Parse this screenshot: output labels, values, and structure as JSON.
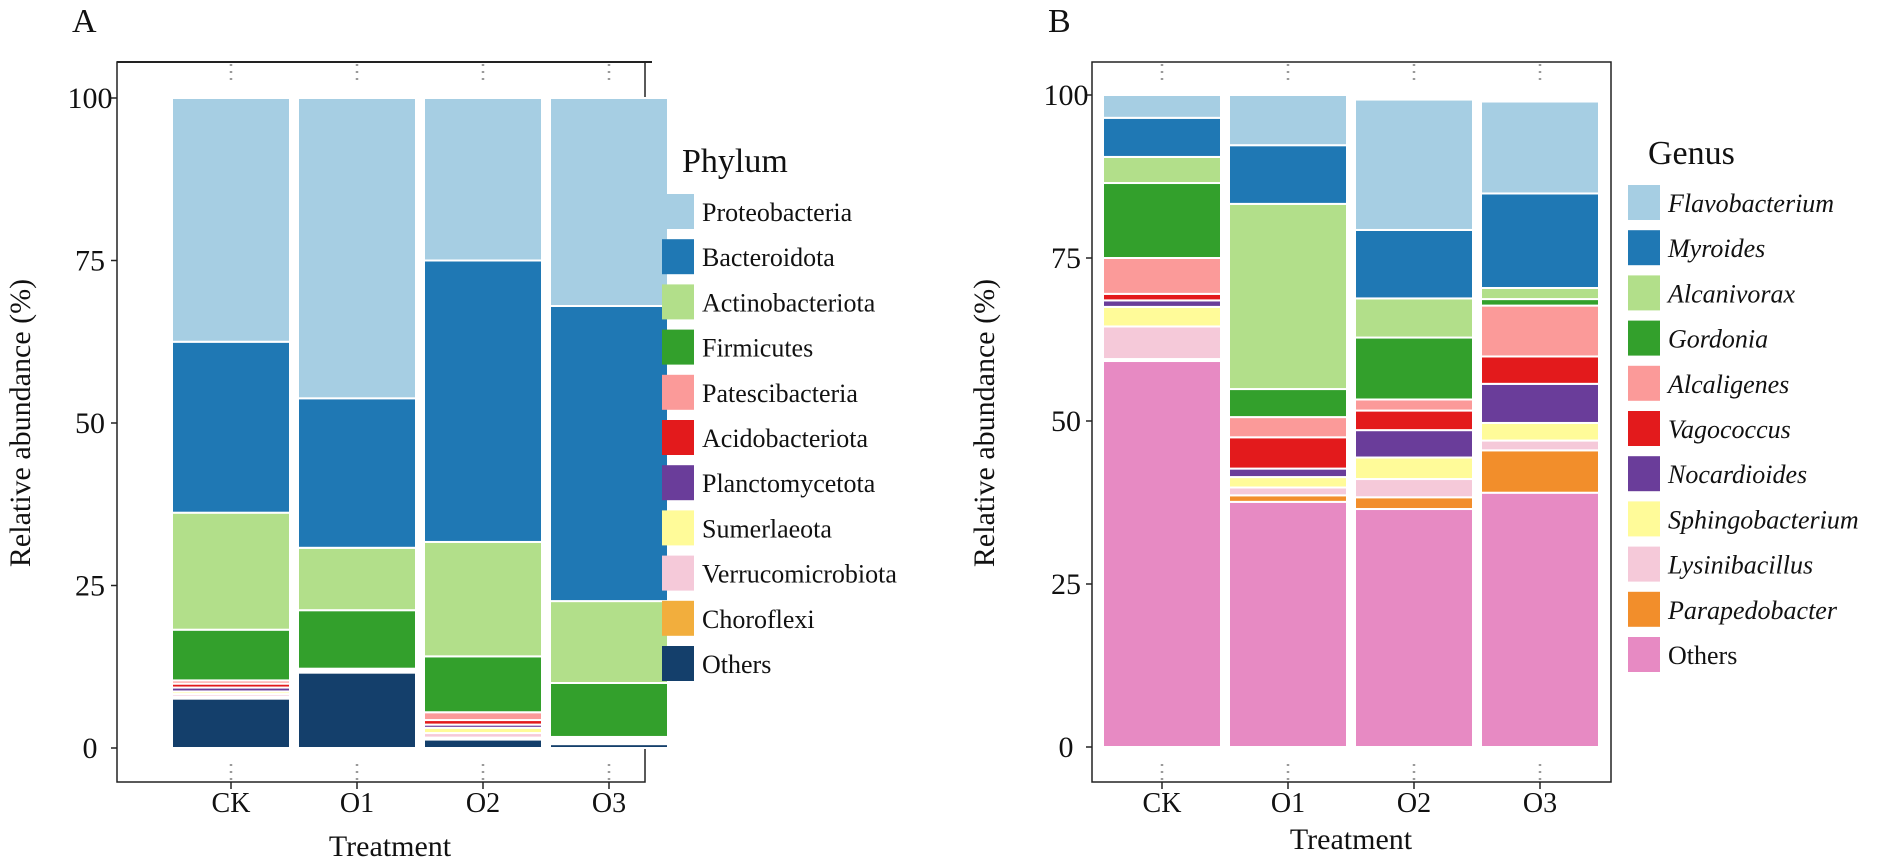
{
  "chart_data": [
    {
      "panel": "A",
      "type": "bar",
      "stacked": true,
      "xlabel": "Treatment",
      "ylabel": "Relative abundance (%)",
      "ylim": [
        0,
        100
      ],
      "yticks": [
        "0",
        "25",
        "50",
        "75",
        "100"
      ],
      "categories": [
        "CK",
        "O1",
        "O2",
        "O3"
      ],
      "legend_title": "Phylum",
      "legend_italic": false,
      "legend_position": "right",
      "series": [
        {
          "name": "Others",
          "color": "#143f6b",
          "values": [
            7.6,
            11.6,
            1.3,
            0.6
          ]
        },
        {
          "name": "Choroflexi",
          "color": "#f2ae3d",
          "values": [
            0.3,
            0.1,
            0.3,
            0.1
          ]
        },
        {
          "name": "Verrucomicrobiota",
          "color": "#f5c9d9",
          "values": [
            0.4,
            0.1,
            0.7,
            0.1
          ]
        },
        {
          "name": "Sumerlaeota",
          "color": "#fffb99",
          "values": [
            0.4,
            0.1,
            0.8,
            0.2
          ]
        },
        {
          "name": "Planctomycetota",
          "color": "#6a3d9a",
          "values": [
            0.6,
            0.1,
            0.5,
            0.2
          ]
        },
        {
          "name": "Acidobacteriota",
          "color": "#e31a1c",
          "values": [
            0.6,
            0.1,
            0.7,
            0.2
          ]
        },
        {
          "name": "Patescibacteria",
          "color": "#fb9a99",
          "values": [
            0.5,
            0.1,
            1.2,
            0.3
          ]
        },
        {
          "name": "Firmicutes",
          "color": "#33a02c",
          "values": [
            7.8,
            9.0,
            8.6,
            8.3
          ]
        },
        {
          "name": "Actinobacteriota",
          "color": "#b2df8a",
          "values": [
            18.0,
            9.6,
            17.6,
            12.6
          ]
        },
        {
          "name": "Bacteroidota",
          "color": "#1f78b4",
          "values": [
            26.3,
            23.0,
            43.3,
            45.4
          ]
        },
        {
          "name": "Proteobacteria",
          "color": "#a6cee3",
          "values": [
            37.5,
            46.2,
            25.0,
            32.0
          ]
        }
      ]
    },
    {
      "panel": "B",
      "type": "bar",
      "stacked": true,
      "xlabel": "Treatment",
      "ylabel": "Relative abundance (%)",
      "ylim": [
        0,
        100
      ],
      "yticks": [
        "0",
        "25",
        "50",
        "75",
        "100"
      ],
      "categories": [
        "CK",
        "O1",
        "O2",
        "O3"
      ],
      "legend_title": "Genus",
      "legend_italic": true,
      "legend_position": "right",
      "series": [
        {
          "name": "Others",
          "color": "#e78ac3",
          "values": [
            59.2,
            37.6,
            36.5,
            39.0
          ]
        },
        {
          "name": "Parapedobacter",
          "color": "#f28e2b",
          "values": [
            0.3,
            1.0,
            1.8,
            6.5
          ]
        },
        {
          "name": "Lysinibacillus",
          "color": "#f5c9d9",
          "values": [
            5.0,
            1.2,
            2.8,
            1.5
          ]
        },
        {
          "name": "Sphingobacterium",
          "color": "#fffb99",
          "values": [
            3.0,
            1.6,
            3.3,
            2.7
          ]
        },
        {
          "name": "Nocardioides",
          "color": "#6a3d9a",
          "values": [
            1.0,
            1.3,
            4.2,
            6.0
          ]
        },
        {
          "name": "Vagococcus",
          "color": "#e31a1c",
          "values": [
            1.0,
            4.8,
            3.0,
            4.2
          ]
        },
        {
          "name": "Alcaligenes",
          "color": "#fb9a99",
          "values": [
            5.5,
            3.1,
            1.7,
            7.8
          ]
        },
        {
          "name": "Gordonia",
          "color": "#33a02c",
          "values": [
            11.5,
            4.3,
            9.5,
            1.0
          ]
        },
        {
          "name": "Alcanivorax",
          "color": "#b2df8a",
          "values": [
            4.0,
            28.4,
            6.0,
            1.7
          ]
        },
        {
          "name": "Myroides",
          "color": "#1f78b4",
          "values": [
            6.0,
            9.0,
            10.5,
            14.5
          ]
        },
        {
          "name": "Flavobacterium",
          "color": "#a6cee3",
          "values": [
            3.5,
            7.7,
            20.0,
            14.1
          ]
        }
      ]
    }
  ]
}
